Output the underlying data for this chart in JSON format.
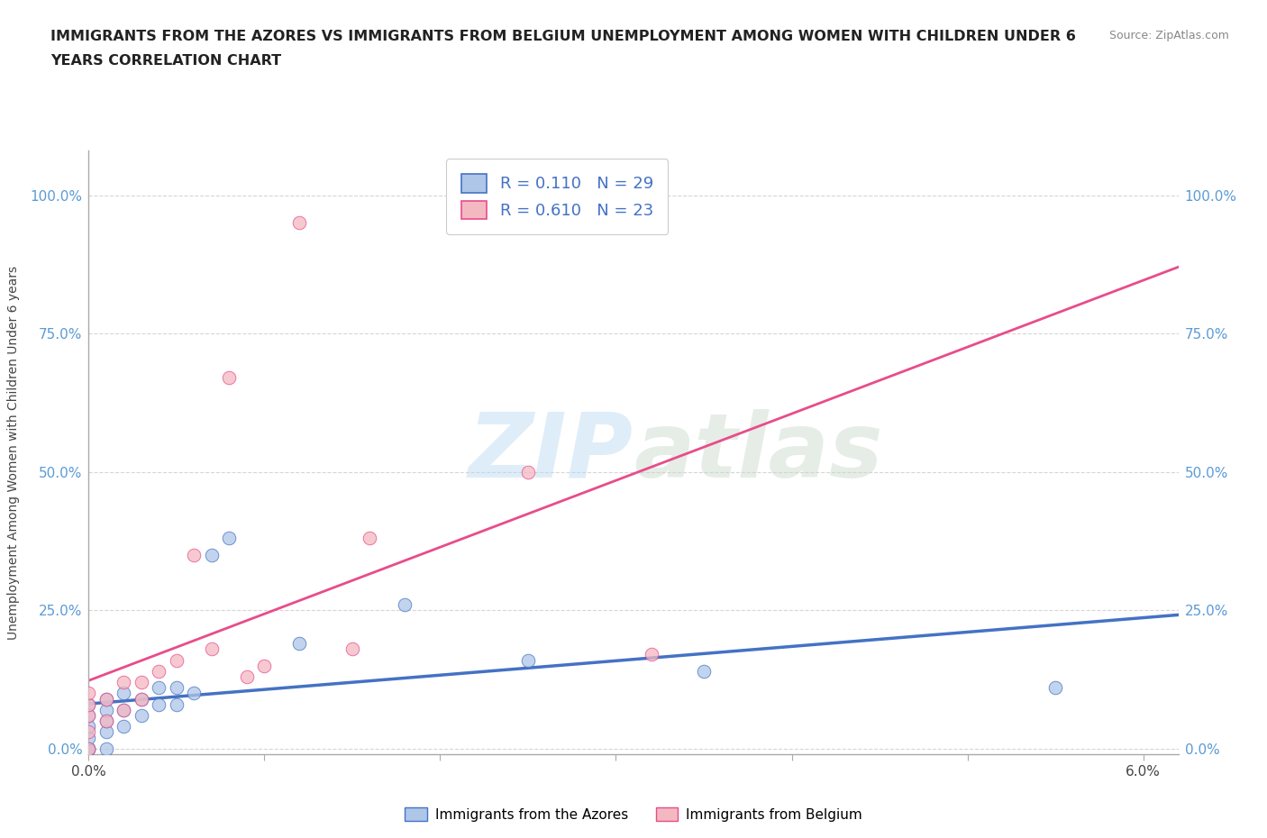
{
  "title_line1": "IMMIGRANTS FROM THE AZORES VS IMMIGRANTS FROM BELGIUM UNEMPLOYMENT AMONG WOMEN WITH CHILDREN UNDER 6",
  "title_line2": "YEARS CORRELATION CHART",
  "source": "Source: ZipAtlas.com",
  "ylabel_label": "Unemployment Among Women with Children Under 6 years",
  "xlim": [
    0.0,
    0.062
  ],
  "ylim": [
    -0.01,
    1.08
  ],
  "xticks": [
    0.0,
    0.01,
    0.02,
    0.03,
    0.04,
    0.05,
    0.06
  ],
  "xticklabels": [
    "0.0%",
    "",
    "",
    "",
    "",
    "",
    "6.0%"
  ],
  "yticks": [
    0.0,
    0.25,
    0.5,
    0.75,
    1.0
  ],
  "yticklabels": [
    "0.0%",
    "25.0%",
    "50.0%",
    "75.0%",
    "100.0%"
  ],
  "azores_color": "#aec6e8",
  "belgium_color": "#f4b8c1",
  "azores_R": 0.11,
  "azores_N": 29,
  "belgium_R": 0.61,
  "belgium_N": 23,
  "legend_label_azores": "Immigrants from the Azores",
  "legend_label_belgium": "Immigrants from Belgium",
  "watermark_zip": "ZIP",
  "watermark_atlas": "atlas",
  "azores_x": [
    0.0,
    0.0,
    0.0,
    0.0,
    0.0,
    0.0,
    0.0,
    0.001,
    0.001,
    0.001,
    0.001,
    0.001,
    0.002,
    0.002,
    0.002,
    0.003,
    0.003,
    0.004,
    0.004,
    0.005,
    0.005,
    0.006,
    0.007,
    0.008,
    0.012,
    0.018,
    0.025,
    0.035,
    0.055
  ],
  "azores_y": [
    0.0,
    0.0,
    0.0,
    0.02,
    0.04,
    0.06,
    0.08,
    0.0,
    0.03,
    0.05,
    0.07,
    0.09,
    0.04,
    0.07,
    0.1,
    0.06,
    0.09,
    0.08,
    0.11,
    0.08,
    0.11,
    0.1,
    0.35,
    0.38,
    0.19,
    0.26,
    0.16,
    0.14,
    0.11
  ],
  "belgium_x": [
    0.0,
    0.0,
    0.0,
    0.0,
    0.0,
    0.001,
    0.001,
    0.002,
    0.002,
    0.003,
    0.003,
    0.004,
    0.005,
    0.006,
    0.007,
    0.008,
    0.009,
    0.01,
    0.012,
    0.015,
    0.016,
    0.025,
    0.032
  ],
  "belgium_y": [
    0.0,
    0.03,
    0.06,
    0.08,
    0.1,
    0.05,
    0.09,
    0.07,
    0.12,
    0.09,
    0.12,
    0.14,
    0.16,
    0.35,
    0.18,
    0.67,
    0.13,
    0.15,
    0.95,
    0.18,
    0.38,
    0.5,
    0.17
  ],
  "trendline_color_azores": "#4472c4",
  "trendline_color_belgium": "#e84c8b",
  "grid_color": "#cccccc",
  "background_color": "#ffffff"
}
